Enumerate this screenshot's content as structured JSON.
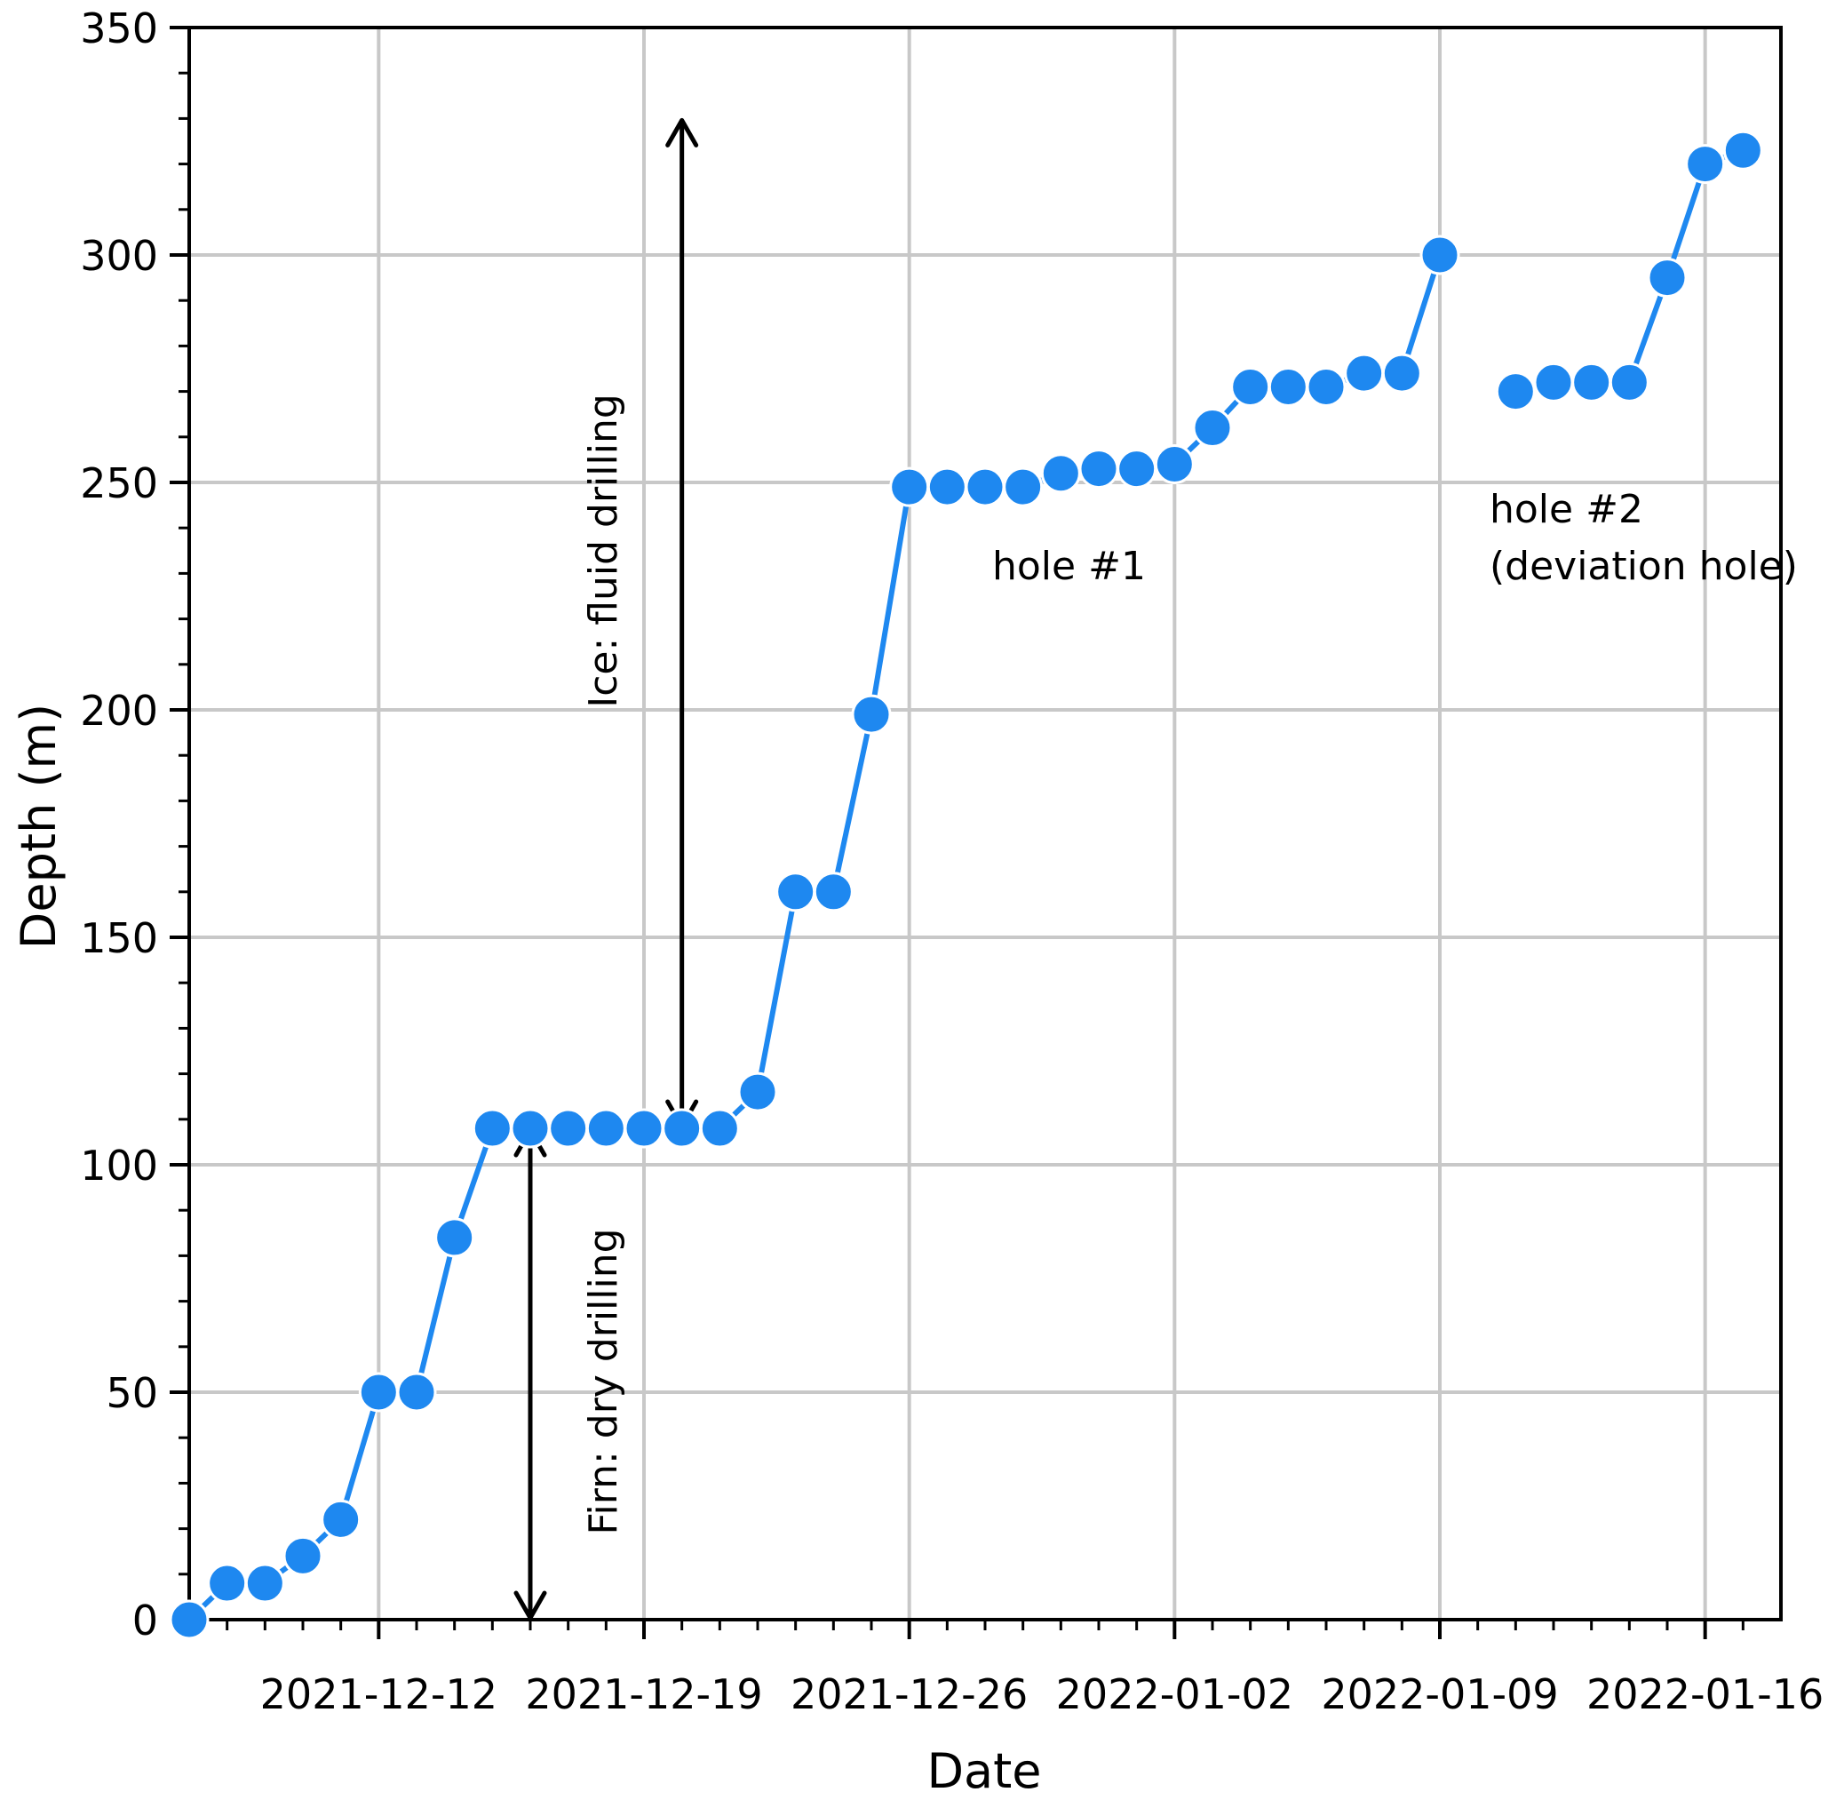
{
  "chart_data": {
    "type": "scatter",
    "title": "",
    "xlabel": "Date",
    "ylabel": "Depth (m)",
    "xlim": [
      "2021-12-07",
      "2022-01-18"
    ],
    "ylim": [
      0,
      350
    ],
    "grid": true,
    "x_ticks": [
      "2021-12-12",
      "2021-12-19",
      "2021-12-26",
      "2022-01-02",
      "2022-01-09",
      "2022-01-16"
    ],
    "y_ticks": [
      "0",
      "50",
      "100",
      "150",
      "200",
      "250",
      "300",
      "350"
    ],
    "series": [
      {
        "name": "",
        "color": "#1E88F0",
        "points": [
          {
            "x": "2021-12-07",
            "y": 0
          },
          {
            "x": "2021-12-08",
            "y": 8
          },
          {
            "x": "2021-12-09",
            "y": 8
          },
          {
            "x": "2021-12-10",
            "y": 14
          },
          {
            "x": "2021-12-11",
            "y": 22
          },
          {
            "x": "2021-12-12",
            "y": 50
          },
          {
            "x": "2021-12-13",
            "y": 50
          },
          {
            "x": "2021-12-14",
            "y": 84
          },
          {
            "x": "2021-12-15",
            "y": 108
          },
          {
            "x": "2021-12-16",
            "y": 108
          },
          {
            "x": "2021-12-17",
            "y": 108
          },
          {
            "x": "2021-12-18",
            "y": 108
          },
          {
            "x": "2021-12-19",
            "y": 108
          },
          {
            "x": "2021-12-20",
            "y": 108
          },
          {
            "x": "2021-12-21",
            "y": 108
          },
          {
            "x": "2021-12-22",
            "y": 116
          },
          {
            "x": "2021-12-23",
            "y": 160
          },
          {
            "x": "2021-12-24",
            "y": 160
          },
          {
            "x": "2021-12-25",
            "y": 199
          },
          {
            "x": "2021-12-26",
            "y": 249
          },
          {
            "x": "2021-12-27",
            "y": 249
          },
          {
            "x": "2021-12-28",
            "y": 249
          },
          {
            "x": "2021-12-29",
            "y": 249
          },
          {
            "x": "2021-12-30",
            "y": 252
          },
          {
            "x": "2021-12-31",
            "y": 253
          },
          {
            "x": "2022-01-01",
            "y": 253
          },
          {
            "x": "2022-01-02",
            "y": 254
          },
          {
            "x": "2022-01-03",
            "y": 262
          },
          {
            "x": "2022-01-04",
            "y": 271
          },
          {
            "x": "2022-01-05",
            "y": 271
          },
          {
            "x": "2022-01-06",
            "y": 271
          },
          {
            "x": "2022-01-07",
            "y": 274
          },
          {
            "x": "2022-01-08",
            "y": 274
          },
          {
            "x": "2022-01-09",
            "y": 300
          }
        ]
      },
      {
        "name": "",
        "color": "#1E88F0",
        "points": [
          {
            "x": "2022-01-11",
            "y": 270
          },
          {
            "x": "2022-01-12",
            "y": 272
          },
          {
            "x": "2022-01-13",
            "y": 272
          },
          {
            "x": "2022-01-14",
            "y": 272
          },
          {
            "x": "2022-01-15",
            "y": 295
          },
          {
            "x": "2022-01-16",
            "y": 320
          },
          {
            "x": "2022-01-17",
            "y": 323
          }
        ]
      }
    ],
    "annotations": [
      {
        "text": "Ice: fluid drilling",
        "arrow_from": {
          "x": "2021-12-20",
          "y": 108
        },
        "arrow_to": {
          "x": "2021-12-20",
          "y": 330
        }
      },
      {
        "text": "Firn: dry drilling",
        "arrow_from": {
          "x": "2021-12-16",
          "y": 0
        },
        "arrow_to": {
          "x": "2021-12-16",
          "y": 108
        }
      },
      {
        "text": "hole #1"
      },
      {
        "text": "hole #2"
      },
      {
        "text": "(deviation hole)"
      }
    ]
  }
}
